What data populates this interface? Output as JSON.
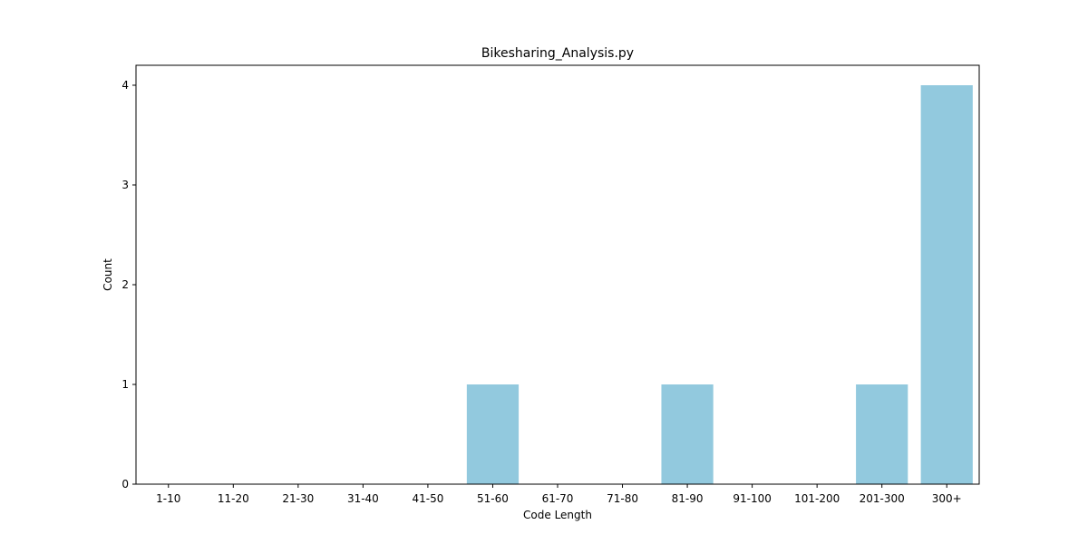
{
  "chart_data": {
    "type": "bar",
    "title": "Bikesharing_Analysis.py",
    "xlabel": "Code Length",
    "ylabel": "Count",
    "categories": [
      "1-10",
      "11-20",
      "21-30",
      "31-40",
      "41-50",
      "51-60",
      "61-70",
      "71-80",
      "81-90",
      "91-100",
      "101-200",
      "201-300",
      "300+"
    ],
    "values": [
      0,
      0,
      0,
      0,
      0,
      1,
      0,
      0,
      1,
      0,
      0,
      1,
      4
    ],
    "yticks": [
      "0",
      "1",
      "2",
      "3",
      "4"
    ],
    "ytick_values": [
      0,
      1,
      2,
      3,
      4
    ],
    "ylim": [
      0,
      4.2
    ],
    "grid": false,
    "legend": "none",
    "bar_color": "#92c9de"
  }
}
